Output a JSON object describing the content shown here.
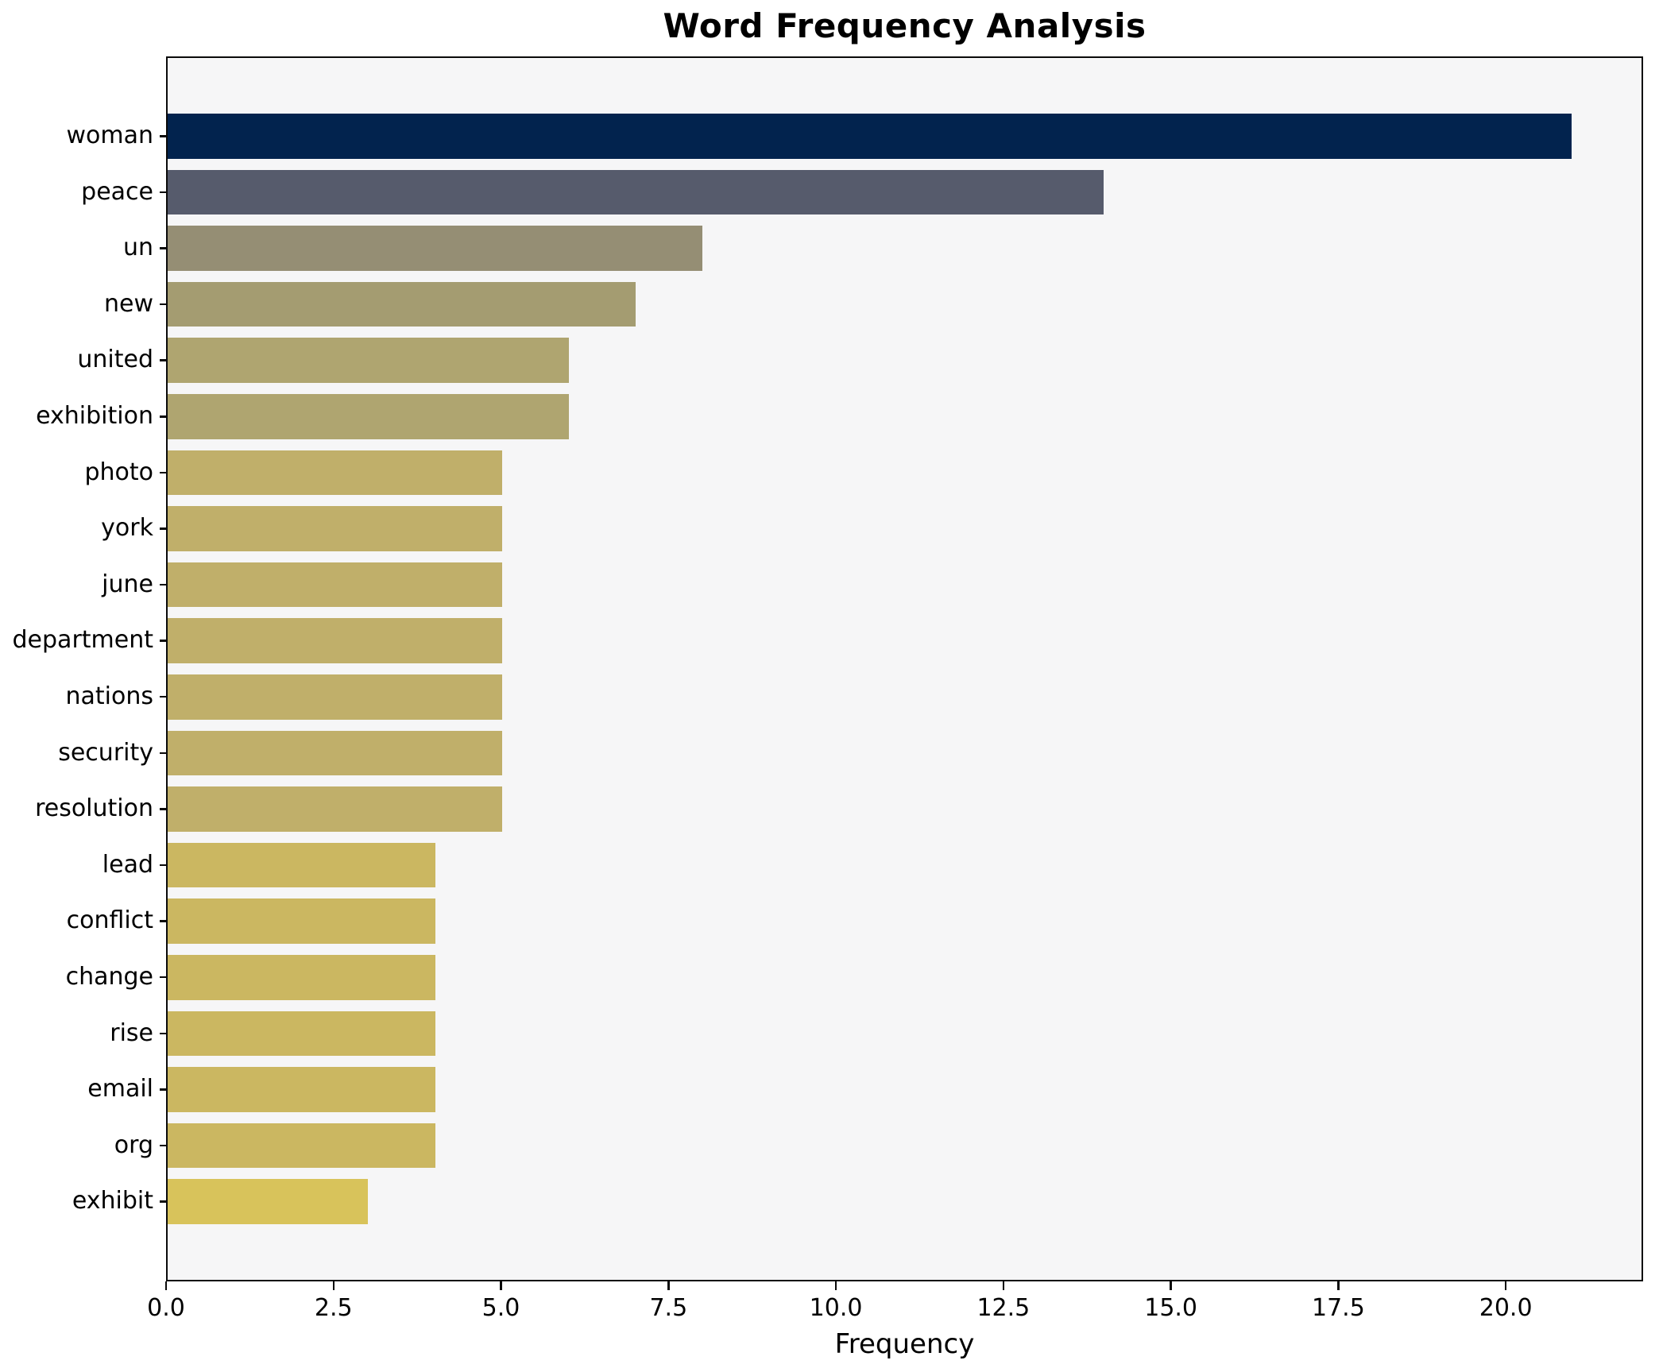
{
  "title": "Word Frequency Analysis",
  "xlabel": "Frequency",
  "colors": {
    "figure_background": "#ffffff",
    "plot_background": "#f6f6f7",
    "axis_spine": "#0a0a0a",
    "text": "#000000"
  },
  "chart_data": {
    "type": "bar",
    "orientation": "horizontal",
    "title": "Word Frequency Analysis",
    "xlabel": "Frequency",
    "ylabel": "",
    "grid": false,
    "legend": false,
    "xlim": [
      0,
      22.05
    ],
    "x_ticks": [
      0.0,
      2.5,
      5.0,
      7.5,
      10.0,
      12.5,
      15.0,
      17.5,
      20.0
    ],
    "x_tick_labels": [
      "0.0",
      "2.5",
      "5.0",
      "7.5",
      "10.0",
      "12.5",
      "15.0",
      "17.5",
      "20.0"
    ],
    "categories": [
      "woman",
      "peace",
      "un",
      "new",
      "united",
      "exhibition",
      "photo",
      "york",
      "june",
      "department",
      "nations",
      "security",
      "resolution",
      "lead",
      "conflict",
      "change",
      "rise",
      "email",
      "org",
      "exhibit"
    ],
    "values": [
      21,
      14,
      8,
      7,
      6,
      6,
      5,
      5,
      5,
      5,
      5,
      5,
      5,
      4,
      4,
      4,
      4,
      4,
      4,
      3
    ],
    "bar_colors": [
      "#02234e",
      "#565b6c",
      "#958e74",
      "#a49c71",
      "#afa570",
      "#afa570",
      "#c0af6a",
      "#c0af6a",
      "#c0af6a",
      "#c0af6a",
      "#c0af6a",
      "#c0af6a",
      "#c0af6a",
      "#cbb761",
      "#cbb761",
      "#cbb761",
      "#cbb761",
      "#cbb761",
      "#cbb761",
      "#d8c35b"
    ]
  }
}
